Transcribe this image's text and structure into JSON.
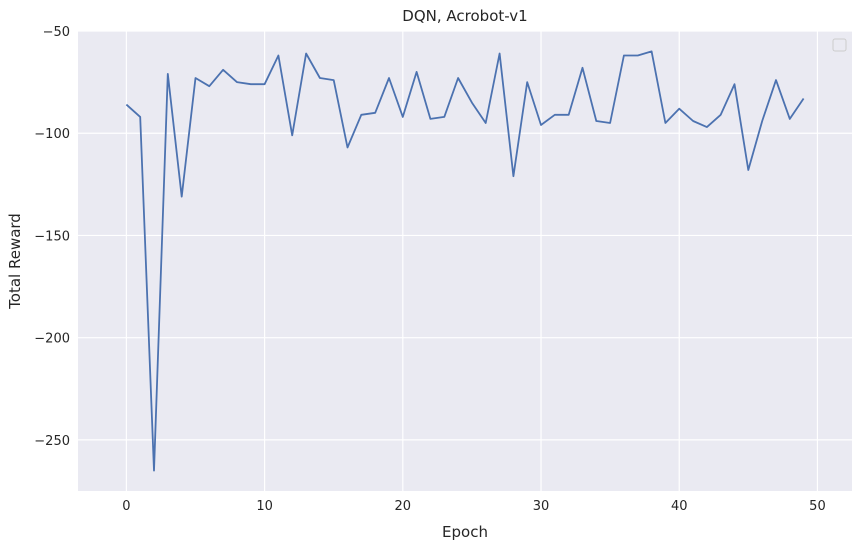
{
  "chart_data": {
    "type": "line",
    "title": "DQN, Acrobot-v1",
    "xlabel": "Epoch",
    "ylabel": "Total Reward",
    "xlim": [
      -3.5,
      52.5
    ],
    "ylim": [
      -275,
      -50
    ],
    "xticks": [
      0,
      10,
      20,
      30,
      40,
      50
    ],
    "yticks": [
      -250,
      -200,
      -150,
      -100,
      -50
    ],
    "xtick_labels": [
      "0",
      "10",
      "20",
      "30",
      "40",
      "50"
    ],
    "ytick_labels": [
      "−250",
      "−200",
      "−150",
      "−100",
      "−50"
    ],
    "grid": true,
    "legend": "top-right (empty)",
    "colors": {
      "line": "#4c72b0",
      "background": "#eaeaf2",
      "grid": "#ffffff"
    },
    "series": [
      {
        "x": [
          0,
          1,
          2,
          3,
          4,
          5,
          6,
          7,
          8,
          9,
          10,
          11,
          12,
          13,
          14,
          15,
          16,
          17,
          18,
          19,
          20,
          21,
          22,
          23,
          24,
          25,
          26,
          27,
          28,
          29,
          30,
          31,
          32,
          33,
          34,
          35,
          36,
          37,
          38,
          39,
          40,
          41,
          42,
          43,
          44,
          45,
          46,
          47,
          48,
          49
        ],
        "values": [
          -86,
          -92,
          -265,
          -71,
          -131,
          -73,
          -77,
          -69,
          -75,
          -76,
          -76,
          -62,
          -101,
          -61,
          -73,
          -74,
          -107,
          -91,
          -90,
          -73,
          -92,
          -70,
          -93,
          -92,
          -73,
          -85,
          -95,
          -61,
          -121,
          -75,
          -96,
          -91,
          -91,
          -68,
          -94,
          -95,
          -62,
          -62,
          -60,
          -95,
          -88,
          -94,
          -97,
          -91,
          -76,
          -118,
          -94,
          -74,
          -93,
          -83
        ]
      }
    ]
  }
}
